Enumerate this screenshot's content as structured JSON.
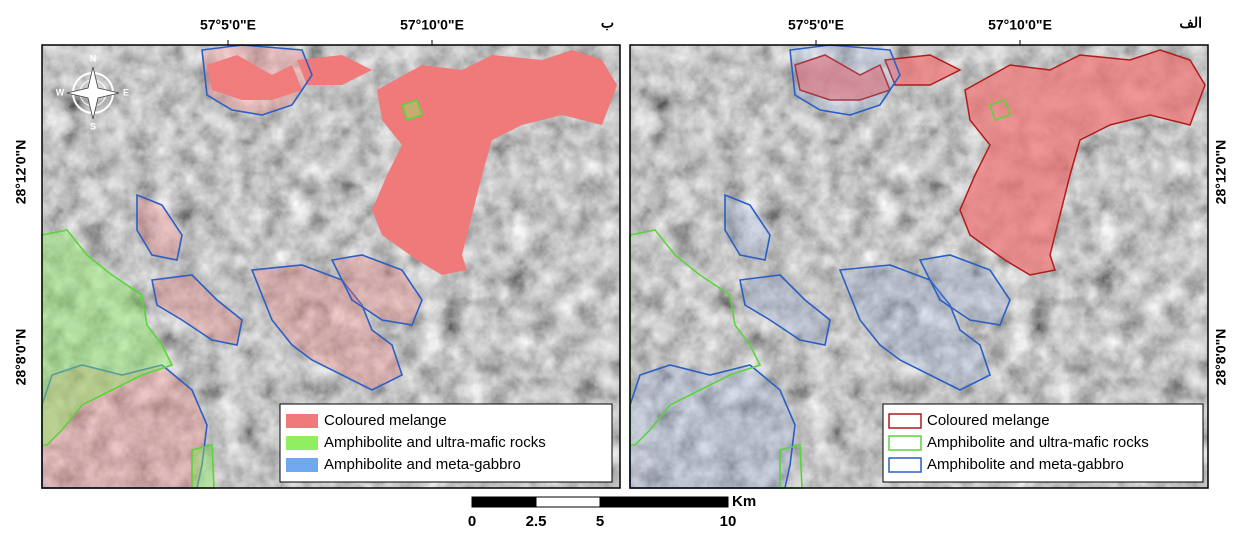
{
  "panels": [
    {
      "label": "ب",
      "lon_labels": [
        "57°5'0\"E",
        "57°10'0\"E"
      ],
      "lat_labels": [
        "28°12'0\"N",
        "28°8'0\"N"
      ],
      "legend": [
        "Coloured melange",
        "Amphibolite and ultra-mafic rocks",
        "Amphibolite and meta-gabbro"
      ]
    },
    {
      "label": "الف",
      "lon_labels": [
        "57°5'0\"E",
        "57°10'0\"E"
      ],
      "lat_labels": [
        "28°12'0\"N",
        "28°8'0\"N"
      ],
      "legend": [
        "Coloured melange",
        "Amphibolite and ultra-mafic rocks",
        "Amphibolite and meta-gabbro"
      ]
    }
  ],
  "compass": {
    "n": "N",
    "s": "S",
    "e": "E",
    "w": "W"
  },
  "scale_bar": {
    "unit": "Km",
    "ticks": [
      0,
      2.5,
      5,
      10
    ]
  }
}
